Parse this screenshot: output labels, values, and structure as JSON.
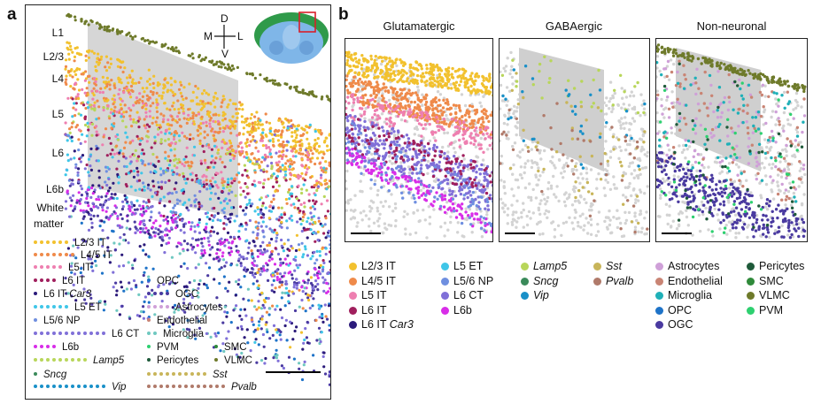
{
  "panel_a": {
    "letter": "a",
    "layers": [
      "L1",
      "L2/3",
      "L4",
      "L5",
      "L6",
      "L6b",
      "White",
      "matter"
    ],
    "orientation": {
      "d": "D",
      "v": "V",
      "m": "M",
      "l": "L"
    },
    "legend_rows": [
      {
        "label": "L2/3 IT",
        "italic": false,
        "color": "#f2c12e",
        "n": 6
      },
      {
        "label": "L4/5 IT",
        "italic": false,
        "color": "#ef8a4a",
        "n": 7
      },
      {
        "label": "L5 IT",
        "italic": false,
        "color": "#ee7fb0",
        "n": 5
      },
      {
        "label": "L6 IT",
        "italic": false,
        "color": "#a01f5d",
        "n": 4
      },
      {
        "label": "L6 IT ",
        "label_italic": "Car3",
        "italic": false,
        "color": "#2b1a7a",
        "n": 1
      },
      {
        "label": "L5 ET",
        "italic": false,
        "color": "#3fc6e8",
        "n": 6
      },
      {
        "label": "L5/6 NP",
        "italic": false,
        "color": "#6f8fe0",
        "n": 1
      },
      {
        "label": "L6 CT",
        "italic": false,
        "color": "#8070d8",
        "n": 12
      },
      {
        "label": "L6b",
        "italic": false,
        "color": "#d82de8",
        "n": 4
      },
      {
        "label": "Lamp5",
        "italic": true,
        "color": "#b8d65a",
        "n": 9
      },
      {
        "label": "Sncg",
        "italic": true,
        "color": "#3a8a5a",
        "n": 1
      },
      {
        "label": "Vip",
        "italic": true,
        "color": "#1990c8",
        "n": 12
      }
    ],
    "legend_col2": [
      {
        "label": "OPC",
        "color": "#1e73c8"
      },
      {
        "label": "OGC",
        "color": "#4a3aa0",
        "n": 4
      },
      {
        "label": "Astrocytes",
        "color": "#cfa0d8",
        "n": 4
      },
      {
        "label": "Endothelial",
        "color": "#c98474"
      },
      {
        "label": "Microglia",
        "color": "#6fc8c0",
        "n": 2
      },
      {
        "label": "PVM",
        "color": "#2ed070"
      },
      {
        "label": "Pericytes",
        "color": "#1f5a3a"
      },
      {
        "label": "Sst",
        "italic": true,
        "color": "#c8b55a",
        "n": 10
      },
      {
        "label": "Pvalb",
        "italic": true,
        "color": "#b07a6a",
        "n": 13
      }
    ],
    "legend_col3": [
      {
        "label": "SMC",
        "color": "#2f8a3a"
      },
      {
        "label": "VLMC",
        "color": "#6e7a2a"
      }
    ]
  },
  "panel_b": {
    "letter": "b",
    "subpanels": [
      "Glutamatergic",
      "GABAergic",
      "Non-neuronal"
    ],
    "legend": [
      [
        {
          "label": "L2/3 IT",
          "color": "#f2c12e"
        },
        {
          "label": "L4/5 IT",
          "color": "#ef8a4a"
        },
        {
          "label": "L5 IT",
          "color": "#ee7fb0"
        },
        {
          "label": "L6 IT",
          "color": "#a01f5d"
        },
        {
          "label": "L6 IT ",
          "label_italic": "Car3",
          "color": "#2b1a7a"
        }
      ],
      [
        {
          "label": "L5 ET",
          "color": "#3fc6e8"
        },
        {
          "label": "L5/6 NP",
          "color": "#6f8fe0"
        },
        {
          "label": "L6 CT",
          "color": "#8070d8"
        },
        {
          "label": "L6b",
          "color": "#d82de8"
        }
      ],
      [
        {
          "label": "Lamp5",
          "italic": true,
          "color": "#b8d65a"
        },
        {
          "label": "Sncg",
          "italic": true,
          "color": "#3a8a5a"
        },
        {
          "label": "Vip",
          "italic": true,
          "color": "#1990c8"
        }
      ],
      [
        {
          "label": "Sst",
          "italic": true,
          "color": "#c8b55a"
        },
        {
          "label": "Pvalb",
          "italic": true,
          "color": "#b07a6a"
        }
      ],
      [
        {
          "label": "Astrocytes",
          "color": "#cfa0d8"
        },
        {
          "label": "Endothelial",
          "color": "#c98474"
        },
        {
          "label": "Microglia",
          "color": "#1fb0b8"
        },
        {
          "label": "OPC",
          "color": "#1e73c8"
        },
        {
          "label": "OGC",
          "color": "#4a3aa0"
        }
      ],
      [
        {
          "label": "Pericytes",
          "color": "#1f5a3a"
        },
        {
          "label": "SMC",
          "color": "#2f8a3a"
        },
        {
          "label": "VLMC",
          "color": "#6e7a2a"
        },
        {
          "label": "PVM",
          "color": "#2ed070"
        }
      ]
    ]
  }
}
